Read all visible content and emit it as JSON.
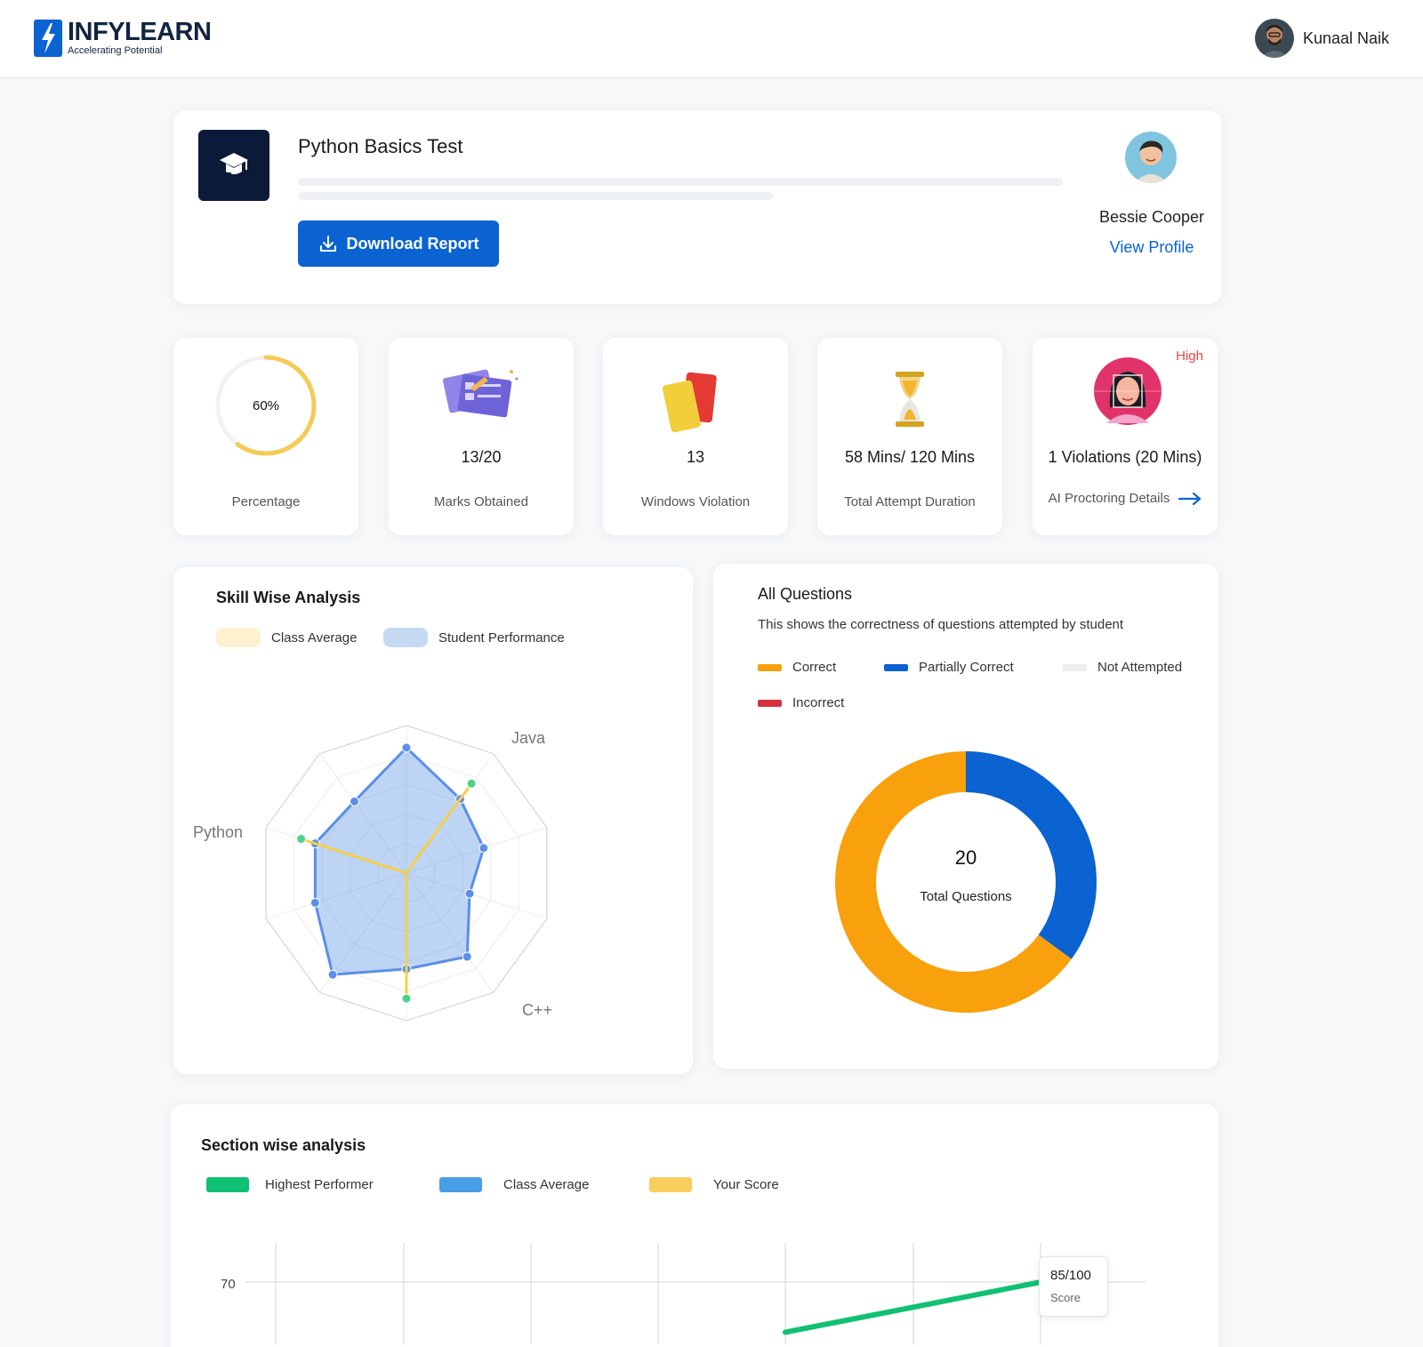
{
  "header": {
    "logo_name": "INFYLEARN",
    "logo_tagline": "Accelerating Potential",
    "user_name": "Kunaal Naik"
  },
  "test": {
    "title": "Python Basics Test",
    "download_label": "Download Report",
    "student_name": "Bessie Cooper",
    "view_profile_label": "View Profile"
  },
  "stats": [
    {
      "value": "60%",
      "label": "Percentage",
      "progress": 0.6
    },
    {
      "value": "13/20",
      "label": "Marks Obtained"
    },
    {
      "value": "13",
      "label": "Windows Violation"
    },
    {
      "value": "58 Mins/ 120 Mins",
      "label": "Total Attempt Duration"
    },
    {
      "value": "1 Violations (20 Mins)",
      "label": "AI Proctoring Details",
      "badge": "High"
    }
  ],
  "skill_analysis": {
    "title": "Skill Wise Analysis",
    "legend": [
      "Class Average",
      "Student Performance"
    ],
    "axis_labels": [
      "Java",
      "Python",
      "C++"
    ]
  },
  "questions": {
    "title": "All Questions",
    "subtitle": "This shows the correctness of questions attempted by student",
    "legend": [
      "Correct",
      "Partially Correct",
      "Not Attempted",
      "Incorrect"
    ],
    "total": "20",
    "total_label": "Total Questions"
  },
  "section_analysis": {
    "title": "Section wise analysis",
    "legend": [
      "Highest Performer",
      "Class Average",
      "Your Score"
    ],
    "y_tick": "70",
    "tooltip_value": "85/100",
    "tooltip_label": "Score"
  },
  "colors": {
    "primary": "#0a63d1",
    "correct": "#f8a10c",
    "partially_correct": "#0a63d1",
    "not_attempted": "#eeeeee",
    "incorrect": "#d6323f",
    "class_average_radar": "#f7cf48",
    "student_radar": "#5b8fe8",
    "highest_performer": "#10c173",
    "class_average_line": "#4a9ee6",
    "your_score": "#f9cd5e",
    "high_badge": "#e8483e"
  },
  "chart_data": [
    {
      "type": "radar",
      "title": "Skill Wise Analysis",
      "axes": [
        "",
        "Java",
        "",
        "",
        "",
        "C++",
        "",
        "",
        "Python",
        ""
      ],
      "series": [
        {
          "name": "Student Performance",
          "values": [
            0.85,
            0.62,
            0.55,
            0.45,
            0.7,
            0.65,
            0.85,
            0.65,
            0.65,
            0.6
          ]
        },
        {
          "name": "Class Average",
          "values": [
            0.0,
            0.75,
            0.0,
            0.0,
            0.0,
            0.85,
            0.0,
            0.0,
            0.75,
            0.0
          ]
        }
      ],
      "range": [
        0,
        1
      ]
    },
    {
      "type": "pie",
      "title": "All Questions",
      "categories": [
        "Correct",
        "Partially Correct",
        "Not Attempted",
        "Incorrect"
      ],
      "values": [
        13,
        7,
        0,
        0
      ],
      "donut": true,
      "center_value": "20",
      "center_label": "Total Questions"
    },
    {
      "type": "line",
      "title": "Section wise analysis",
      "series": [
        {
          "name": "Highest Performer",
          "values": [
            null,
            null,
            null,
            null,
            64,
            67,
            70
          ]
        }
      ],
      "y_ticks": [
        70
      ]
    }
  ]
}
